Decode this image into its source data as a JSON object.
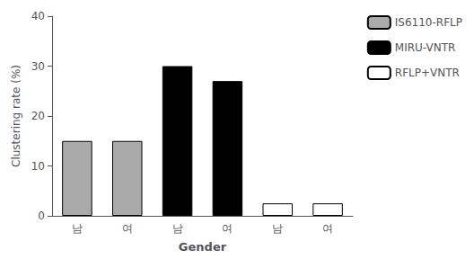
{
  "chart_data": {
    "type": "bar",
    "categories": [
      "남",
      "여",
      "남",
      "여",
      "남",
      "여"
    ],
    "series": [
      {
        "name": "IS6110-RFLP",
        "color": "#aaaaaa",
        "values": [
          15.0,
          15.0,
          null,
          null,
          null,
          null
        ]
      },
      {
        "name": "MIRU-VNTR",
        "color": "#000000",
        "values": [
          null,
          null,
          30.0,
          27.0,
          null,
          null
        ]
      },
      {
        "name": "RFLP+VNTR",
        "color": "#ffffff",
        "values": [
          null,
          null,
          null,
          null,
          2.5,
          2.5
        ]
      }
    ],
    "ylim": [
      0,
      40
    ],
    "yticks": [
      0,
      10,
      20,
      30,
      40
    ],
    "ylabel": "Clustering rate (%)",
    "xlabel": "Gender",
    "grid": false,
    "legend": "upper right"
  }
}
